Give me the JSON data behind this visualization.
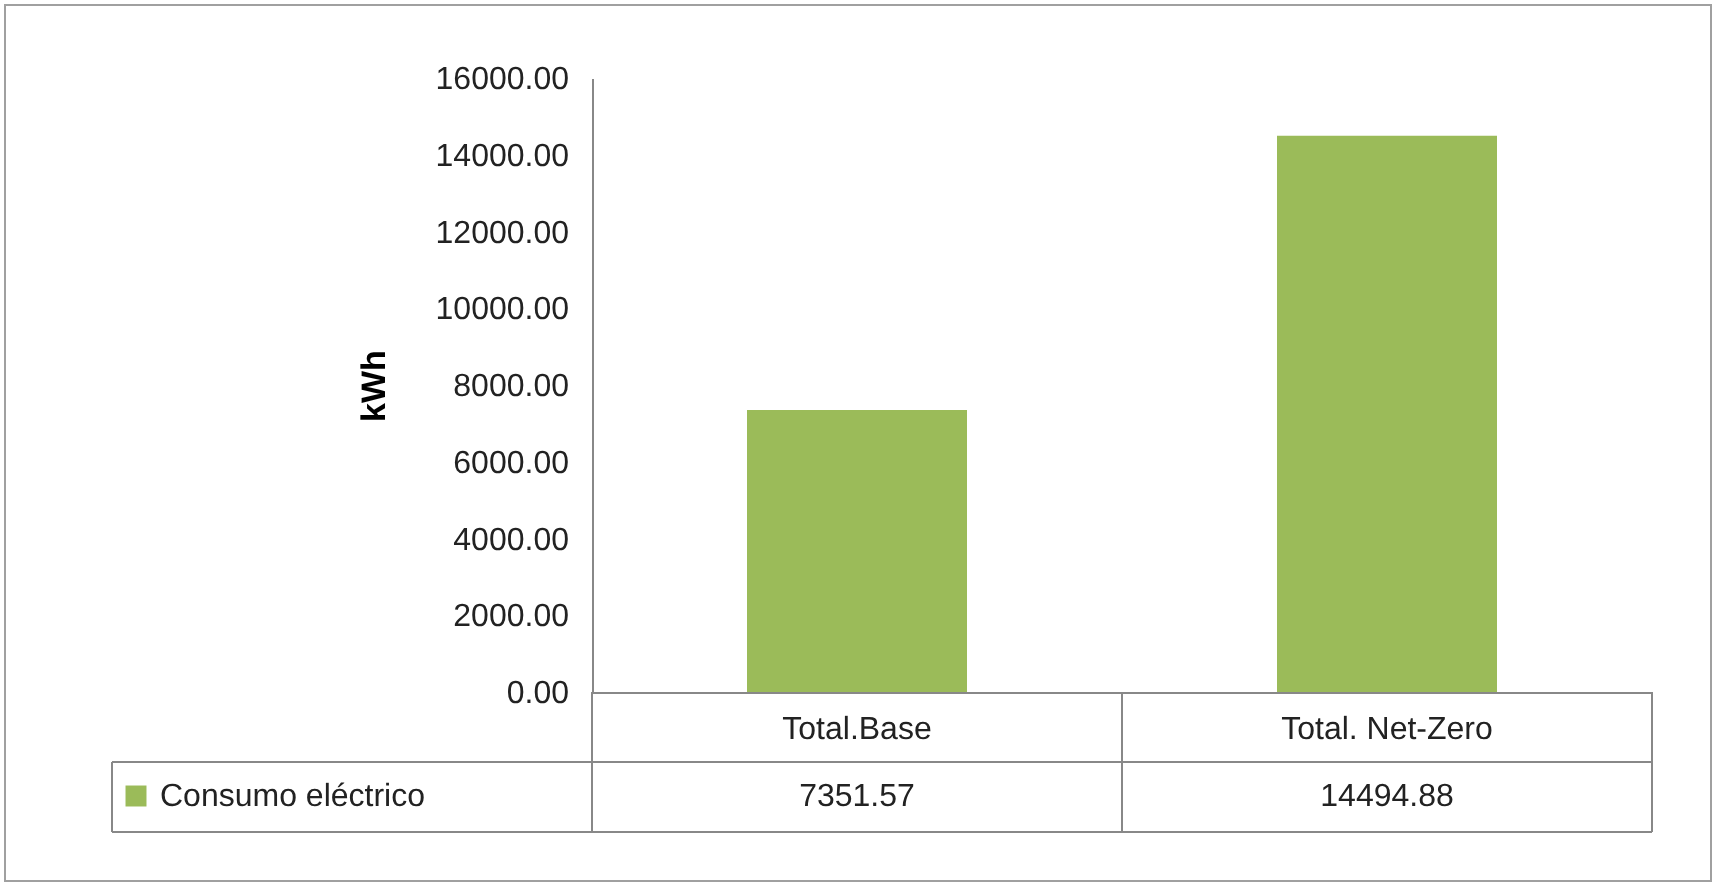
{
  "chart_data": {
    "type": "bar",
    "ylabel": "kWh",
    "categories": [
      "Total.Base",
      "Total. Net-Zero"
    ],
    "series": [
      {
        "name": "Consumo eléctrico",
        "color": "#9bbb59",
        "values": [
          7351.57,
          14494.88
        ]
      }
    ],
    "ylim": [
      0,
      16000
    ],
    "yticks": [
      {
        "value": 0,
        "label": "0.00"
      },
      {
        "value": 2000,
        "label": "2000.00"
      },
      {
        "value": 4000,
        "label": "4000.00"
      },
      {
        "value": 6000,
        "label": "6000.00"
      },
      {
        "value": 8000,
        "label": "8000.00"
      },
      {
        "value": 10000,
        "label": "10000.00"
      },
      {
        "value": 12000,
        "label": "12000.00"
      },
      {
        "value": 14000,
        "label": "14000.00"
      },
      {
        "value": 16000,
        "label": "16000.00"
      }
    ],
    "data_labels": true,
    "legend": "bottom left",
    "grid": false
  }
}
